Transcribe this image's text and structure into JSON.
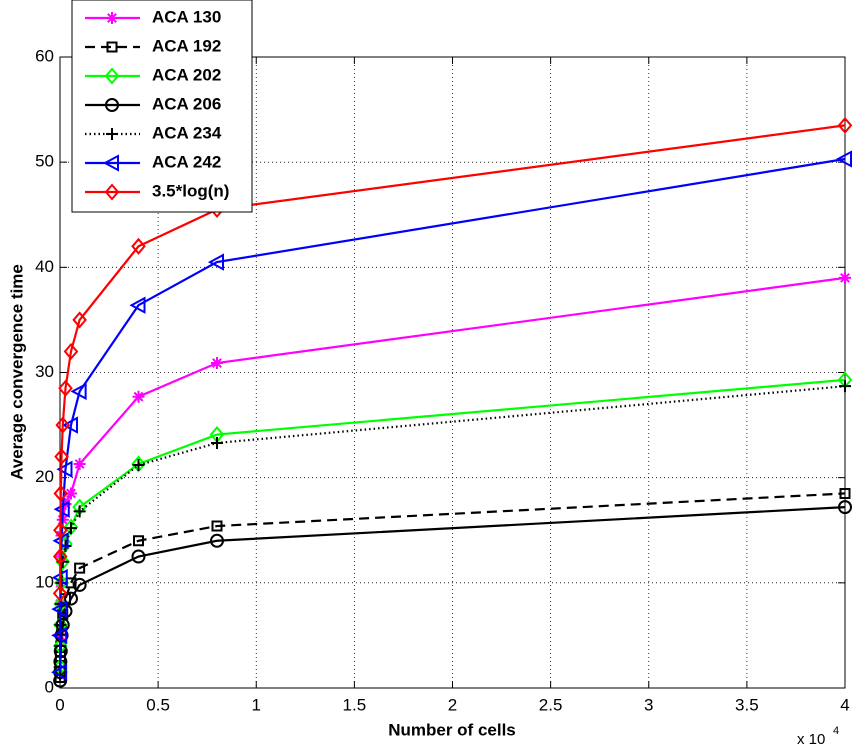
{
  "chart_data": {
    "type": "line",
    "x_label": "Number of cells",
    "y_label": "Average convergence time",
    "x_multiplier": "x 10",
    "x_multiplier_exponent": "4",
    "x": [
      0.0006,
      0.0012,
      0.002,
      0.004,
      0.008,
      0.014,
      0.028,
      0.056,
      0.1,
      0.4,
      0.8,
      4
    ],
    "series": [
      {
        "name": "ACA 130",
        "color": "#ff00ff",
        "line_style": "solid",
        "marker": "asterisk",
        "values": [
          5,
          8,
          10,
          12.5,
          14.5,
          16,
          17.5,
          18.5,
          21.3,
          27.7,
          30.9,
          39
        ]
      },
      {
        "name": "ACA 192",
        "color": "#000000",
        "line_style": "dashed",
        "marker": "square",
        "values": [
          1,
          2,
          3,
          4,
          5.5,
          7,
          8.5,
          10,
          11.4,
          14,
          15.4,
          18.5
        ]
      },
      {
        "name": "ACA 202",
        "color": "#00ff00",
        "line_style": "solid",
        "marker": "diamond",
        "values": [
          2,
          4,
          6,
          8,
          10,
          12,
          13.7,
          15.3,
          17.2,
          21.3,
          24.1,
          29.3
        ]
      },
      {
        "name": "ACA 206",
        "color": "#000000",
        "line_style": "solid",
        "marker": "circle",
        "values": [
          0.7,
          1.5,
          2.5,
          3.5,
          5,
          6,
          7.3,
          8.5,
          9.8,
          12.5,
          14,
          17.2
        ]
      },
      {
        "name": "ACA 234",
        "color": "#000000",
        "line_style": "dotted",
        "marker": "plus",
        "values": [
          2,
          4,
          6,
          8,
          10,
          12,
          13.5,
          15.2,
          16.8,
          21.2,
          23.3,
          28.7
        ]
      },
      {
        "name": "ACA 242",
        "color": "#0000ff",
        "line_style": "solid",
        "marker": "triangle-left",
        "values": [
          1.5,
          5,
          7.5,
          10.5,
          14,
          17,
          20.8,
          25,
          28.2,
          36.4,
          40.5,
          50.3
        ]
      },
      {
        "name": "3.5*log(n)",
        "color": "#ff0000",
        "line_style": "solid",
        "marker": "diamond",
        "values": [
          9,
          12.5,
          15,
          18.5,
          22,
          25,
          28.5,
          32,
          35,
          42,
          45.5,
          53.5
        ]
      }
    ],
    "xlim": [
      0,
      4
    ],
    "xticks": [
      0,
      0.5,
      1,
      1.5,
      2,
      2.5,
      3,
      3.5,
      4
    ],
    "ylim": [
      0,
      60
    ],
    "yticks": [
      0,
      10,
      20,
      30,
      40,
      50,
      60
    ],
    "grid": true,
    "legend": "upper left"
  }
}
